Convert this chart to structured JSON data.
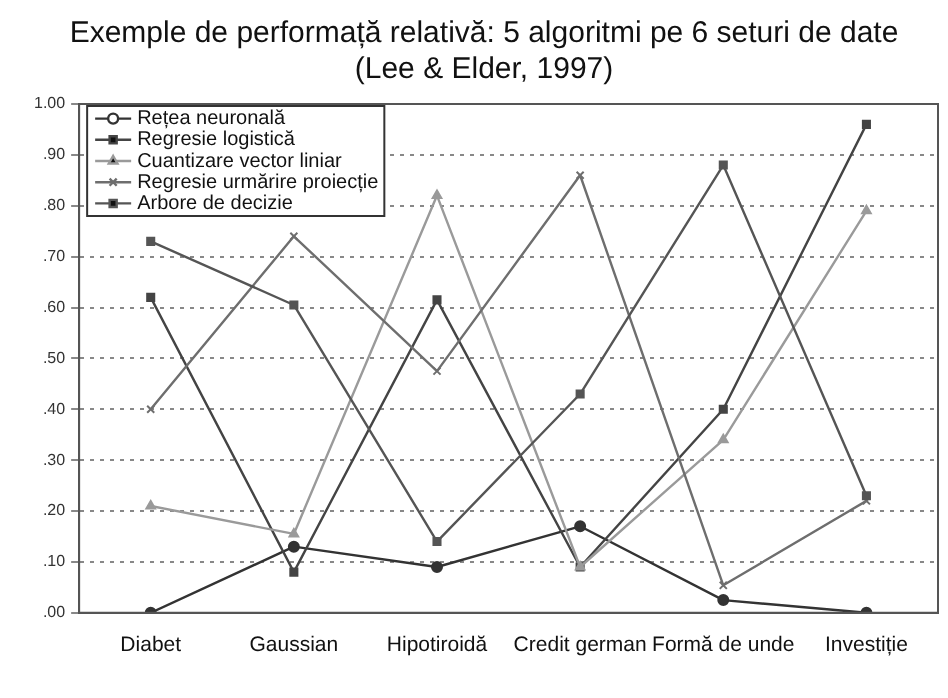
{
  "chart_data": {
    "type": "line",
    "title": "Exemple de performață relativă: 5 algoritmi pe 6 seturi de date\n(Lee & Elder, 1997)",
    "categories": [
      "Diabet",
      "Gaussian",
      "Hipotiroidă",
      "Credit german",
      "Formă de unde",
      "Investiție"
    ],
    "series": [
      {
        "name": "Rețea neuronală",
        "color": "#333333",
        "marker": "circle",
        "values": [
          0.0,
          0.13,
          0.09,
          0.17,
          0.025,
          0.0
        ]
      },
      {
        "name": "Regresie logistică",
        "color": "#444444",
        "marker": "square",
        "values": [
          0.62,
          0.08,
          0.615,
          0.09,
          0.4,
          0.96
        ]
      },
      {
        "name": "Cuantizare vector liniar",
        "color": "#9a9a9a",
        "marker": "triangle",
        "values": [
          0.21,
          0.155,
          0.82,
          0.09,
          0.34,
          0.79
        ]
      },
      {
        "name": "Regresie urmărire proiecție",
        "color": "#6e6e6e",
        "marker": "cross",
        "values": [
          0.4,
          0.74,
          0.475,
          0.86,
          0.054,
          0.22
        ]
      },
      {
        "name": "Arbore de decizie",
        "color": "#555555",
        "marker": "square",
        "values": [
          0.73,
          0.605,
          0.14,
          0.43,
          0.88,
          0.23
        ]
      }
    ],
    "ylim": [
      0,
      1
    ],
    "yticks": [
      {
        "value": 0,
        "label": ".00"
      },
      {
        "value": 0.1,
        "label": ".10"
      },
      {
        "value": 0.2,
        "label": ".20"
      },
      {
        "value": 0.3,
        "label": ".30"
      },
      {
        "value": 0.4,
        "label": ".40"
      },
      {
        "value": 0.5,
        "label": ".50"
      },
      {
        "value": 0.6,
        "label": ".60"
      },
      {
        "value": 0.7,
        "label": ".70"
      },
      {
        "value": 0.8,
        "label": ".80"
      },
      {
        "value": 0.9,
        "label": ".90"
      },
      {
        "value": 1,
        "label": "1.00"
      }
    ],
    "grid": "y",
    "legend": "top left",
    "line_style": "solid"
  }
}
